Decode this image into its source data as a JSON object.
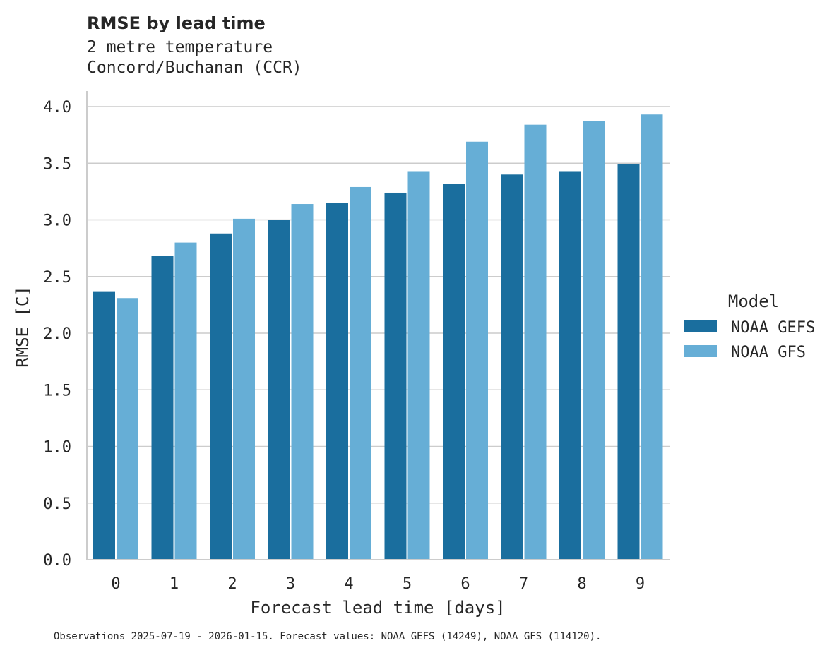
{
  "chart_data": {
    "type": "bar",
    "title": "RMSE by lead time",
    "subtitle": [
      "2 metre temperature",
      "Concord/Buchanan (CCR)"
    ],
    "xlabel": "Forecast lead time [days]",
    "ylabel": "RMSE [C]",
    "categories": [
      "0",
      "1",
      "2",
      "3",
      "4",
      "5",
      "6",
      "7",
      "8",
      "9"
    ],
    "ylim": [
      0,
      4.0
    ],
    "yticks": [
      "0.0",
      "0.5",
      "1.0",
      "1.5",
      "2.0",
      "2.5",
      "3.0",
      "3.5",
      "4.0"
    ],
    "grid": "horizontal",
    "legend": {
      "title": "Model",
      "placement": "right"
    },
    "series": [
      {
        "name": "NOAA GEFS",
        "color": "#1a6e9e",
        "values": [
          2.37,
          2.68,
          2.88,
          3.0,
          3.15,
          3.24,
          3.32,
          3.4,
          3.43,
          3.49
        ]
      },
      {
        "name": "NOAA GFS",
        "color": "#66aed6",
        "values": [
          2.31,
          2.8,
          3.01,
          3.14,
          3.29,
          3.43,
          3.69,
          3.84,
          3.87,
          3.93
        ]
      }
    ],
    "footnote": "Observations 2025-07-19 - 2026-01-15. Forecast values: NOAA GEFS (14249), NOAA GFS (114120)."
  }
}
